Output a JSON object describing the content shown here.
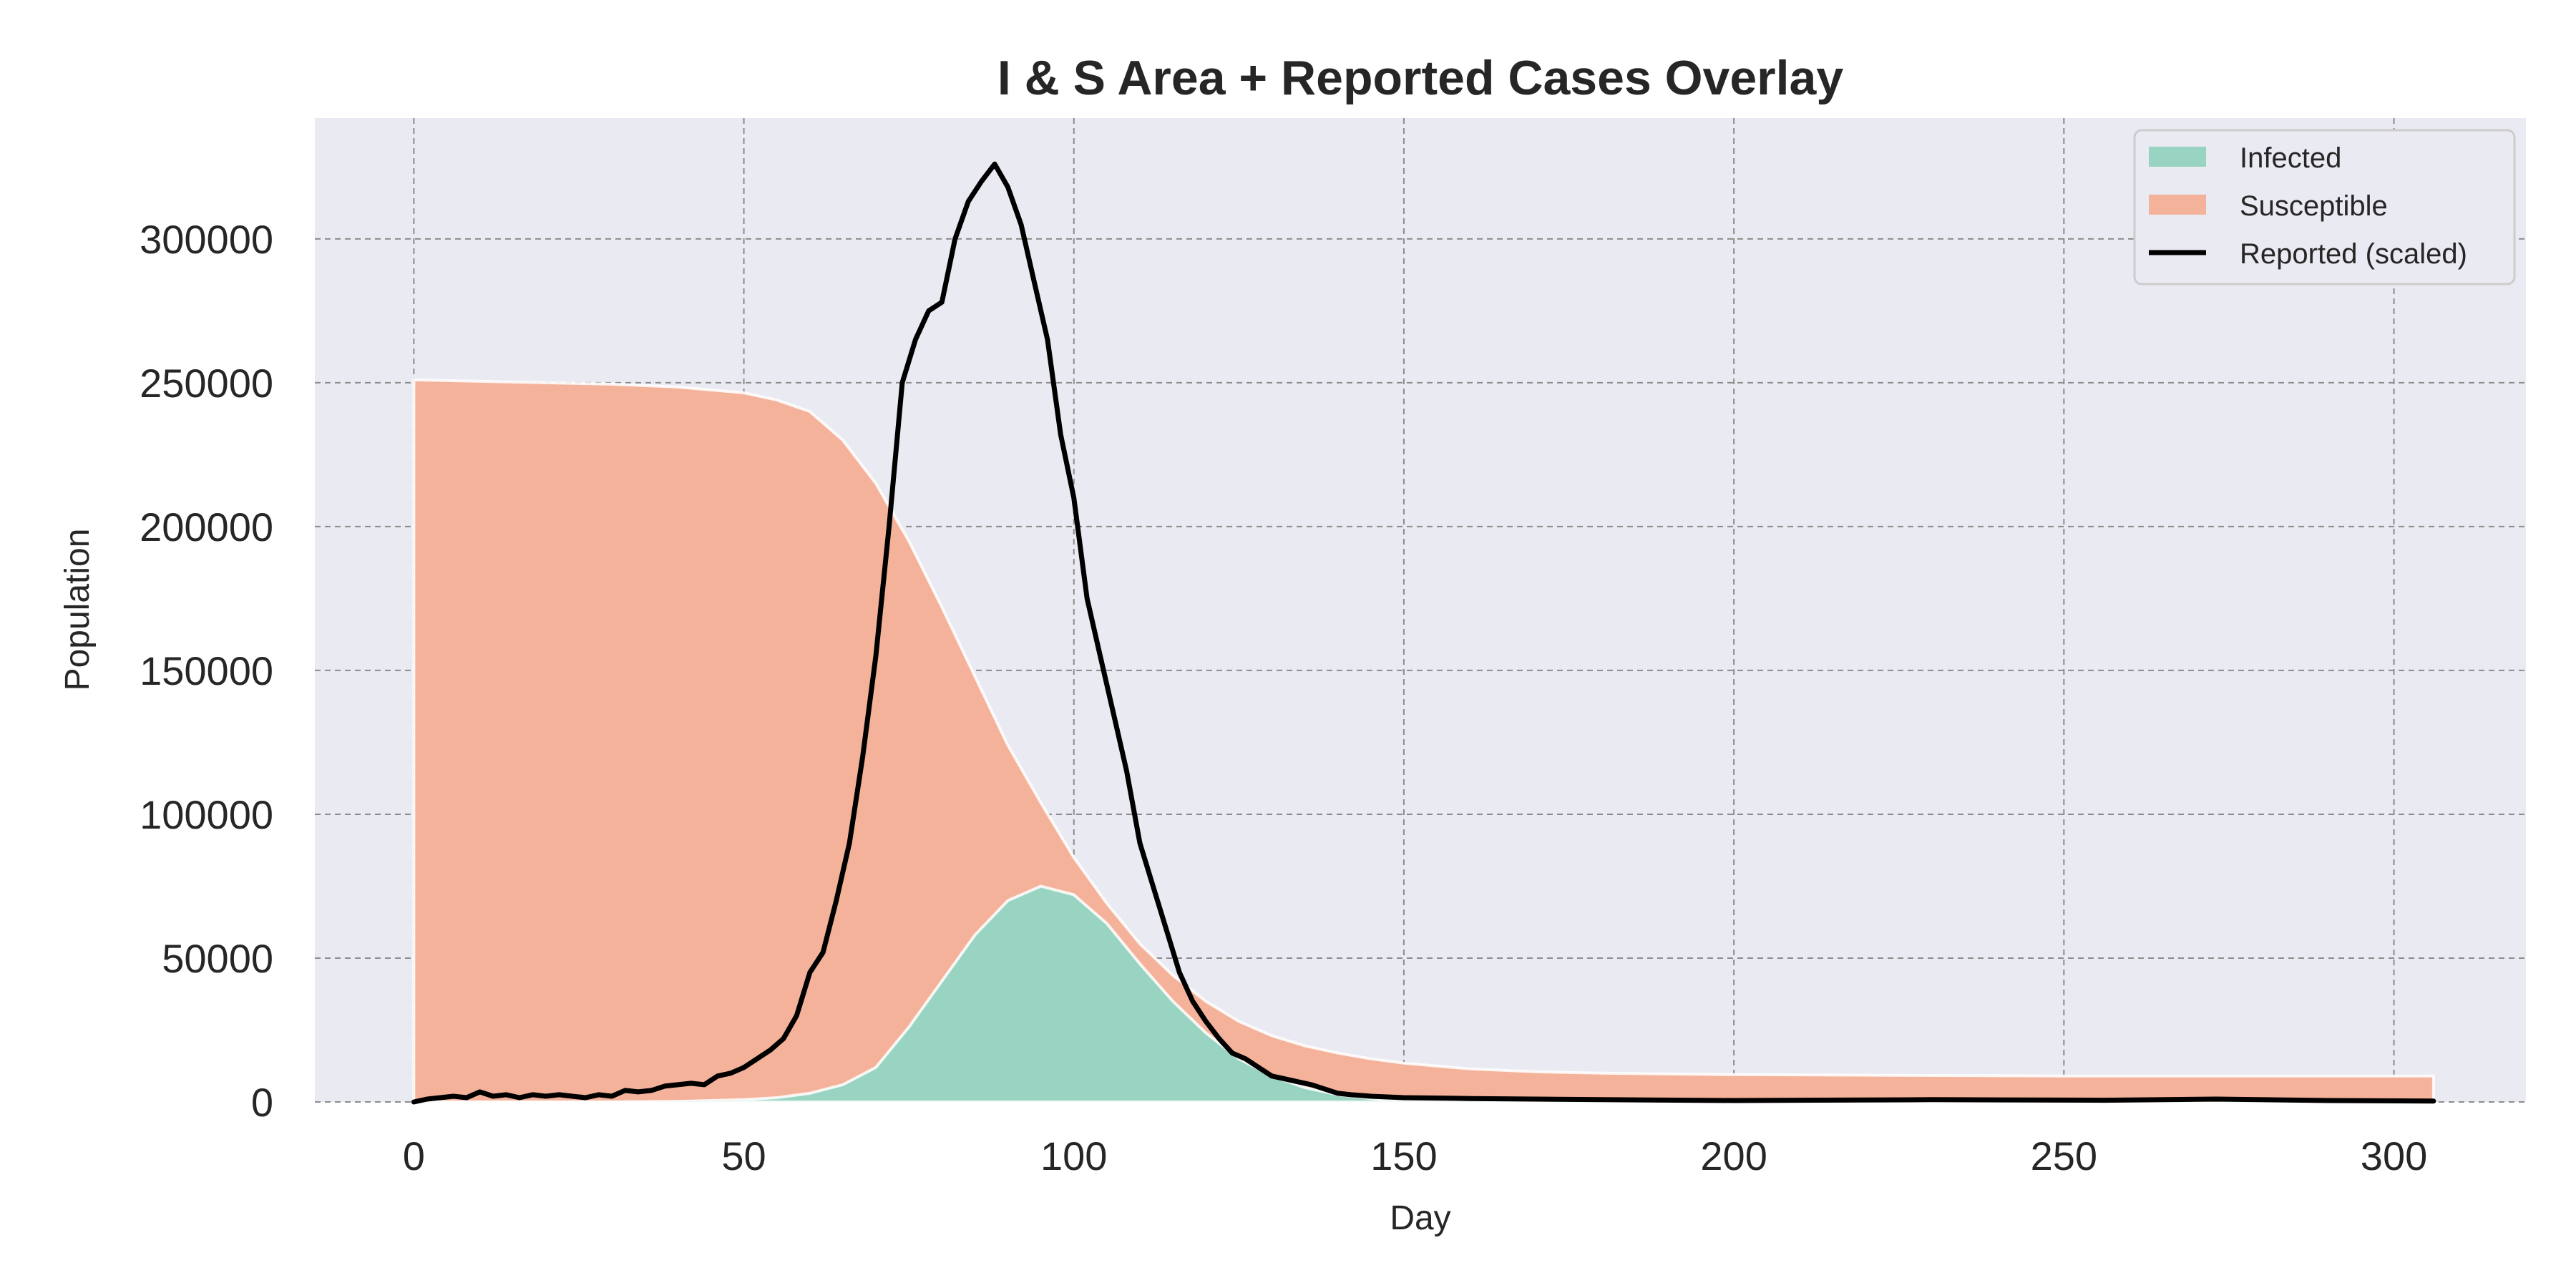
{
  "chart_data": {
    "type": "area",
    "title": "I & S Area + Reported Cases Overlay",
    "xlabel": "Day",
    "ylabel": "Population",
    "xlim": [
      -15,
      320
    ],
    "ylim": [
      0,
      342000
    ],
    "x_ticks": [
      0,
      50,
      100,
      150,
      200,
      250,
      300
    ],
    "x_tick_labels": [
      "0",
      "50",
      "100",
      "150",
      "200",
      "250",
      "300"
    ],
    "y_ticks": [
      0,
      50000,
      100000,
      150000,
      200000,
      250000,
      300000
    ],
    "y_tick_labels": [
      "0",
      "50000",
      "100000",
      "150000",
      "200000",
      "250000",
      "300000"
    ],
    "grid": true,
    "legend_position": "top-right",
    "series": [
      {
        "name": "Infected",
        "kind": "area",
        "color": "#99d3c1",
        "x": [
          0,
          10,
          20,
          30,
          40,
          50,
          55,
          60,
          65,
          70,
          75,
          80,
          85,
          90,
          95,
          100,
          105,
          110,
          115,
          120,
          125,
          130,
          135,
          140,
          145,
          150,
          160,
          170,
          180,
          200,
          250,
          306
        ],
        "y": [
          0,
          0,
          0,
          0,
          200,
          800,
          1500,
          3000,
          6000,
          12000,
          26000,
          42000,
          58000,
          70000,
          75000,
          72000,
          62000,
          48000,
          35000,
          24000,
          15000,
          9000,
          5000,
          2500,
          1200,
          500,
          150,
          0,
          0,
          0,
          0,
          0
        ]
      },
      {
        "name": "Susceptible",
        "kind": "area",
        "color": "#f4b29a",
        "x": [
          0,
          10,
          20,
          30,
          40,
          50,
          55,
          60,
          65,
          70,
          75,
          80,
          85,
          90,
          95,
          100,
          105,
          110,
          115,
          120,
          125,
          130,
          135,
          140,
          145,
          150,
          160,
          170,
          180,
          200,
          250,
          306
        ],
        "y": [
          251000,
          250500,
          250000,
          249500,
          248500,
          246500,
          244000,
          240000,
          230000,
          215000,
          195000,
          172000,
          148000,
          124000,
          104000,
          85000,
          69000,
          55000,
          44000,
          35000,
          28000,
          23000,
          19500,
          17000,
          15000,
          13500,
          11500,
          10500,
          10000,
          9500,
          9000,
          9000
        ]
      },
      {
        "name": "Reported (scaled)",
        "kind": "line",
        "color": "#000000",
        "x": [
          0,
          2,
          4,
          6,
          8,
          10,
          12,
          14,
          16,
          18,
          20,
          22,
          24,
          26,
          28,
          30,
          32,
          34,
          36,
          38,
          40,
          42,
          44,
          46,
          48,
          50,
          52,
          54,
          56,
          58,
          60,
          62,
          64,
          66,
          68,
          70,
          72,
          74,
          76,
          78,
          80,
          82,
          84,
          86,
          88,
          90,
          92,
          94,
          96,
          98,
          100,
          102,
          104,
          106,
          108,
          110,
          112,
          114,
          116,
          118,
          120,
          122,
          124,
          126,
          128,
          130,
          132,
          134,
          136,
          138,
          140,
          142,
          145,
          150,
          160,
          180,
          200,
          230,
          256,
          273,
          290,
          306
        ],
        "y": [
          0,
          1000,
          1500,
          2000,
          1500,
          3500,
          2000,
          2500,
          1500,
          2500,
          2000,
          2500,
          2000,
          1500,
          2500,
          2000,
          4000,
          3500,
          4000,
          5500,
          6000,
          6500,
          6000,
          9000,
          10000,
          12000,
          15000,
          18000,
          22000,
          30000,
          45000,
          52000,
          70000,
          90000,
          120000,
          155000,
          200000,
          250000,
          265000,
          275000,
          278000,
          300000,
          313000,
          320000,
          326000,
          318000,
          305000,
          285000,
          265000,
          232000,
          210000,
          175000,
          155000,
          135000,
          115000,
          90000,
          75000,
          60000,
          45000,
          35000,
          28000,
          22000,
          17000,
          15000,
          12000,
          9000,
          8000,
          7000,
          6000,
          4500,
          3000,
          2500,
          2000,
          1500,
          1200,
          800,
          500,
          800,
          600,
          1000,
          500,
          300
        ]
      }
    ]
  },
  "legend": {
    "items": [
      {
        "label": "Infected",
        "color": "#99d3c1",
        "kind": "patch"
      },
      {
        "label": "Susceptible",
        "color": "#f4b29a",
        "kind": "patch"
      },
      {
        "label": "Reported (scaled)",
        "color": "#000000",
        "kind": "line"
      }
    ]
  },
  "colors": {
    "plot_background": "#eaeaf2",
    "grid": "#8c8c8c",
    "area_edge": "#ffffff"
  }
}
